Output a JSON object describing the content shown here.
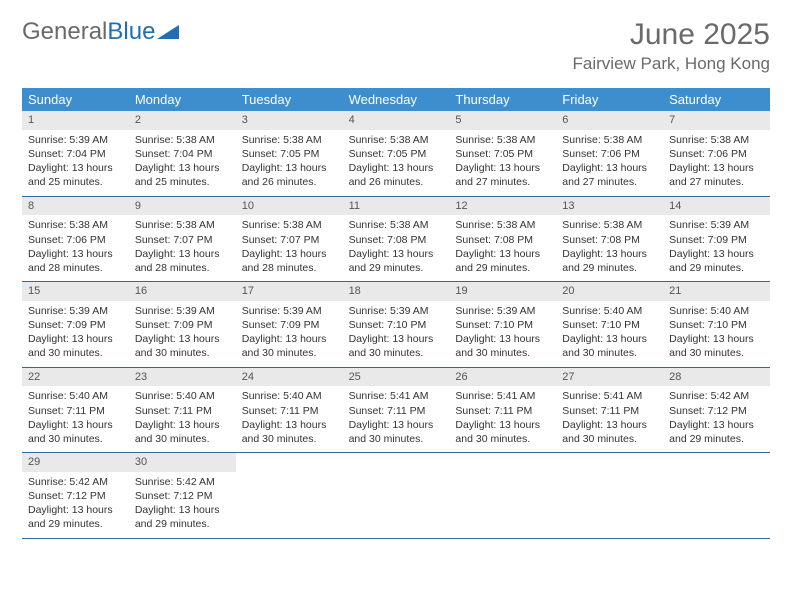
{
  "logo": {
    "text1": "General",
    "text2": "Blue"
  },
  "title": "June 2025",
  "location": "Fairview Park, Hong Kong",
  "colors": {
    "header_bar": "#3d8ecf",
    "week_border": "#2f6aa0",
    "daynum_bg": "#e9e9e9",
    "logo_gray": "#6a6a6a",
    "logo_blue": "#1f6fb2",
    "text": "#333333",
    "title_gray": "#6a6a6a"
  },
  "day_names": [
    "Sunday",
    "Monday",
    "Tuesday",
    "Wednesday",
    "Thursday",
    "Friday",
    "Saturday"
  ],
  "days": [
    {
      "n": 1,
      "sr": "5:39 AM",
      "ss": "7:04 PM",
      "dl": "13 hours and 25 minutes."
    },
    {
      "n": 2,
      "sr": "5:38 AM",
      "ss": "7:04 PM",
      "dl": "13 hours and 25 minutes."
    },
    {
      "n": 3,
      "sr": "5:38 AM",
      "ss": "7:05 PM",
      "dl": "13 hours and 26 minutes."
    },
    {
      "n": 4,
      "sr": "5:38 AM",
      "ss": "7:05 PM",
      "dl": "13 hours and 26 minutes."
    },
    {
      "n": 5,
      "sr": "5:38 AM",
      "ss": "7:05 PM",
      "dl": "13 hours and 27 minutes."
    },
    {
      "n": 6,
      "sr": "5:38 AM",
      "ss": "7:06 PM",
      "dl": "13 hours and 27 minutes."
    },
    {
      "n": 7,
      "sr": "5:38 AM",
      "ss": "7:06 PM",
      "dl": "13 hours and 27 minutes."
    },
    {
      "n": 8,
      "sr": "5:38 AM",
      "ss": "7:06 PM",
      "dl": "13 hours and 28 minutes."
    },
    {
      "n": 9,
      "sr": "5:38 AM",
      "ss": "7:07 PM",
      "dl": "13 hours and 28 minutes."
    },
    {
      "n": 10,
      "sr": "5:38 AM",
      "ss": "7:07 PM",
      "dl": "13 hours and 28 minutes."
    },
    {
      "n": 11,
      "sr": "5:38 AM",
      "ss": "7:08 PM",
      "dl": "13 hours and 29 minutes."
    },
    {
      "n": 12,
      "sr": "5:38 AM",
      "ss": "7:08 PM",
      "dl": "13 hours and 29 minutes."
    },
    {
      "n": 13,
      "sr": "5:38 AM",
      "ss": "7:08 PM",
      "dl": "13 hours and 29 minutes."
    },
    {
      "n": 14,
      "sr": "5:39 AM",
      "ss": "7:09 PM",
      "dl": "13 hours and 29 minutes."
    },
    {
      "n": 15,
      "sr": "5:39 AM",
      "ss": "7:09 PM",
      "dl": "13 hours and 30 minutes."
    },
    {
      "n": 16,
      "sr": "5:39 AM",
      "ss": "7:09 PM",
      "dl": "13 hours and 30 minutes."
    },
    {
      "n": 17,
      "sr": "5:39 AM",
      "ss": "7:09 PM",
      "dl": "13 hours and 30 minutes."
    },
    {
      "n": 18,
      "sr": "5:39 AM",
      "ss": "7:10 PM",
      "dl": "13 hours and 30 minutes."
    },
    {
      "n": 19,
      "sr": "5:39 AM",
      "ss": "7:10 PM",
      "dl": "13 hours and 30 minutes."
    },
    {
      "n": 20,
      "sr": "5:40 AM",
      "ss": "7:10 PM",
      "dl": "13 hours and 30 minutes."
    },
    {
      "n": 21,
      "sr": "5:40 AM",
      "ss": "7:10 PM",
      "dl": "13 hours and 30 minutes."
    },
    {
      "n": 22,
      "sr": "5:40 AM",
      "ss": "7:11 PM",
      "dl": "13 hours and 30 minutes."
    },
    {
      "n": 23,
      "sr": "5:40 AM",
      "ss": "7:11 PM",
      "dl": "13 hours and 30 minutes."
    },
    {
      "n": 24,
      "sr": "5:40 AM",
      "ss": "7:11 PM",
      "dl": "13 hours and 30 minutes."
    },
    {
      "n": 25,
      "sr": "5:41 AM",
      "ss": "7:11 PM",
      "dl": "13 hours and 30 minutes."
    },
    {
      "n": 26,
      "sr": "5:41 AM",
      "ss": "7:11 PM",
      "dl": "13 hours and 30 minutes."
    },
    {
      "n": 27,
      "sr": "5:41 AM",
      "ss": "7:11 PM",
      "dl": "13 hours and 30 minutes."
    },
    {
      "n": 28,
      "sr": "5:42 AM",
      "ss": "7:12 PM",
      "dl": "13 hours and 29 minutes."
    },
    {
      "n": 29,
      "sr": "5:42 AM",
      "ss": "7:12 PM",
      "dl": "13 hours and 29 minutes."
    },
    {
      "n": 30,
      "sr": "5:42 AM",
      "ss": "7:12 PM",
      "dl": "13 hours and 29 minutes."
    }
  ],
  "labels": {
    "sunrise": "Sunrise:",
    "sunset": "Sunset:",
    "daylight": "Daylight:"
  },
  "layout": {
    "start_weekday": 0,
    "total_cells": 35
  }
}
